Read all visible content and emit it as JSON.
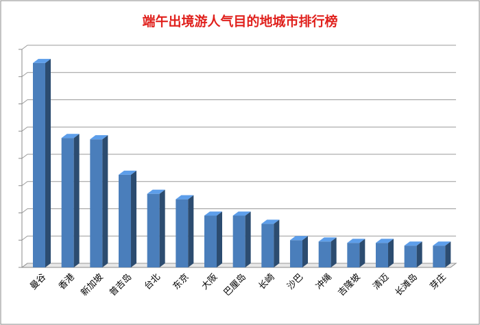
{
  "chart_data": {
    "type": "bar3d",
    "title": "端午出境游人气目的地城市排行榜",
    "categories": [
      "曼谷",
      "香港",
      "新加坡",
      "普吉岛",
      "台北",
      "东京",
      "大阪",
      "巴厘岛",
      "长崎",
      "沙巴",
      "冲绳",
      "吉隆坡",
      "清迈",
      "长滩岛",
      "芽庄"
    ],
    "values": [
      7.5,
      4.75,
      4.7,
      3.4,
      2.7,
      2.5,
      1.9,
      1.9,
      1.6,
      1.0,
      0.95,
      0.9,
      0.9,
      0.8,
      0.8
    ],
    "color": "#4a7ebb",
    "ylim": [
      0,
      8
    ],
    "yticks": [
      0,
      1,
      2,
      3,
      4,
      5,
      6,
      7,
      8
    ],
    "grid": true
  }
}
